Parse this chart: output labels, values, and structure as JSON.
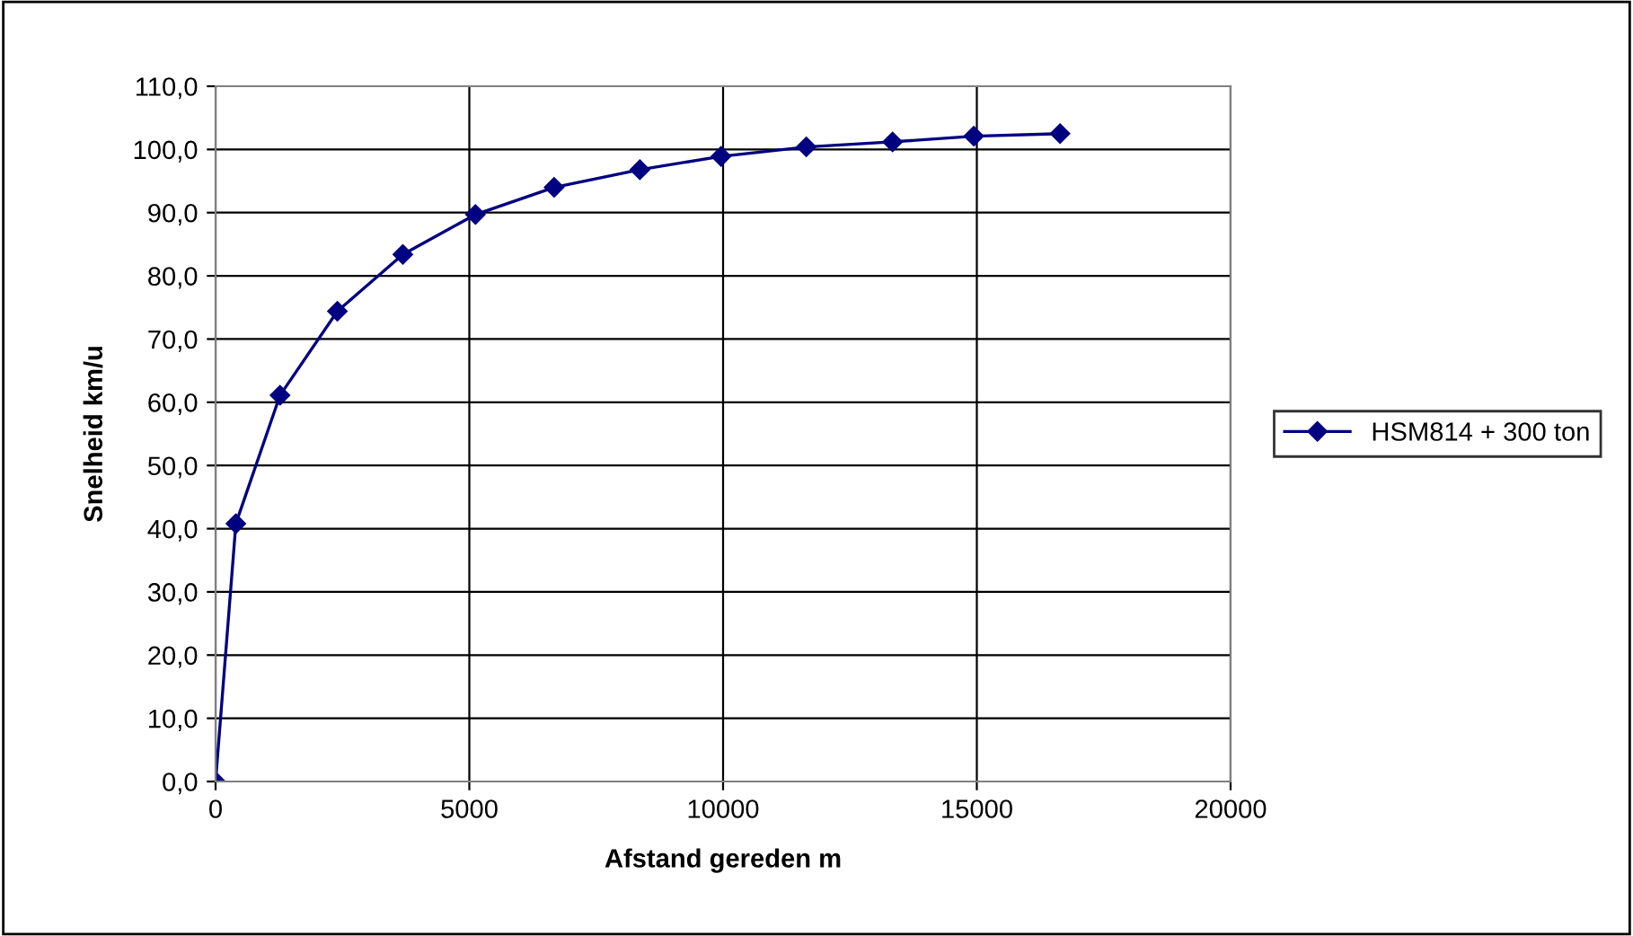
{
  "chart_data": {
    "type": "line",
    "xlabel": "Afstand gereden m",
    "ylabel": "Snelheid km/u",
    "series": [
      {
        "name": "HSM814 + 300 ton",
        "color": "#000080",
        "x": [
          0,
          400,
          1270,
          2400,
          3690,
          5120,
          6670,
          8360,
          9960,
          11640,
          13340,
          14940,
          16640
        ],
        "values": [
          0.0,
          40.8,
          61.1,
          74.4,
          83.4,
          89.7,
          94.0,
          96.8,
          98.9,
          100.4,
          101.2,
          102.1,
          102.5
        ]
      }
    ],
    "xlim": [
      0,
      20000
    ],
    "xticks": [
      0,
      5000,
      10000,
      15000,
      20000
    ],
    "ylim": [
      0,
      110
    ],
    "yticks": [
      {
        "value": 0,
        "label": "0,0"
      },
      {
        "value": 10,
        "label": "10,0"
      },
      {
        "value": 20,
        "label": "20,0"
      },
      {
        "value": 30,
        "label": "30,0"
      },
      {
        "value": 40,
        "label": "40,0"
      },
      {
        "value": 50,
        "label": "50,0"
      },
      {
        "value": 60,
        "label": "60,0"
      },
      {
        "value": 70,
        "label": "70,0"
      },
      {
        "value": 80,
        "label": "80,0"
      },
      {
        "value": 90,
        "label": "90,0"
      },
      {
        "value": 100,
        "label": "100,0"
      },
      {
        "value": 110,
        "label": "110,0"
      }
    ],
    "grid": true,
    "legend": "right",
    "marker": "diamond",
    "line_style": "solid"
  }
}
